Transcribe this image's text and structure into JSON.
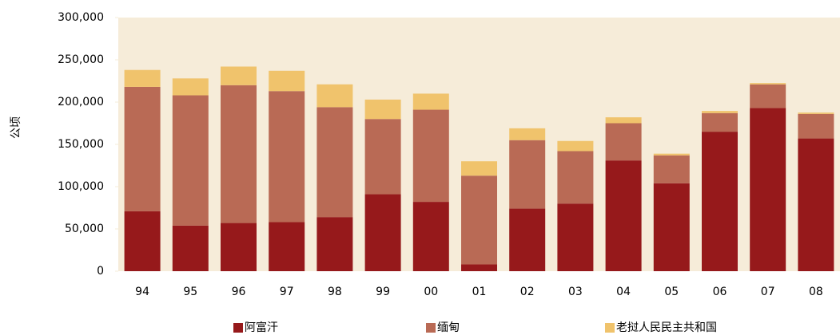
{
  "chart_data": {
    "type": "stacked_bar",
    "y_label": "公顷",
    "categories": [
      "94",
      "95",
      "96",
      "97",
      "98",
      "99",
      "00",
      "01",
      "02",
      "03",
      "04",
      "05",
      "06",
      "07",
      "08"
    ],
    "series": [
      {
        "name": "阿富汗",
        "color": "#96191b",
        "values": [
          71000,
          54000,
          57000,
          58000,
          64000,
          91000,
          82000,
          8000,
          74000,
          80000,
          131000,
          104000,
          165000,
          193000,
          157000
        ]
      },
      {
        "name": "缅甸",
        "color": "#b96a55",
        "values": [
          147000,
          154000,
          163000,
          155000,
          130000,
          89000,
          109000,
          105000,
          81000,
          62000,
          44000,
          33000,
          22000,
          28000,
          29000
        ]
      },
      {
        "name": "老挝人民民主共和国",
        "color": "#f0c36c",
        "values": [
          20000,
          20000,
          22000,
          24000,
          27000,
          23000,
          19000,
          17000,
          14000,
          12000,
          7000,
          2000,
          2500,
          1500,
          1600
        ]
      }
    ],
    "ylim": [
      0,
      300000
    ],
    "yticks": [
      0,
      {
        "value": 50000,
        "label": "50,000"
      },
      {
        "value": 100000,
        "label": "100,000"
      },
      {
        "value": 150000,
        "label": "150,000"
      },
      {
        "value": 200000,
        "label": "200,000"
      },
      {
        "value": 250000,
        "label": "250,000"
      },
      {
        "value": 300000,
        "label": "300,000"
      }
    ],
    "plot_background": "#f6ecd9"
  }
}
